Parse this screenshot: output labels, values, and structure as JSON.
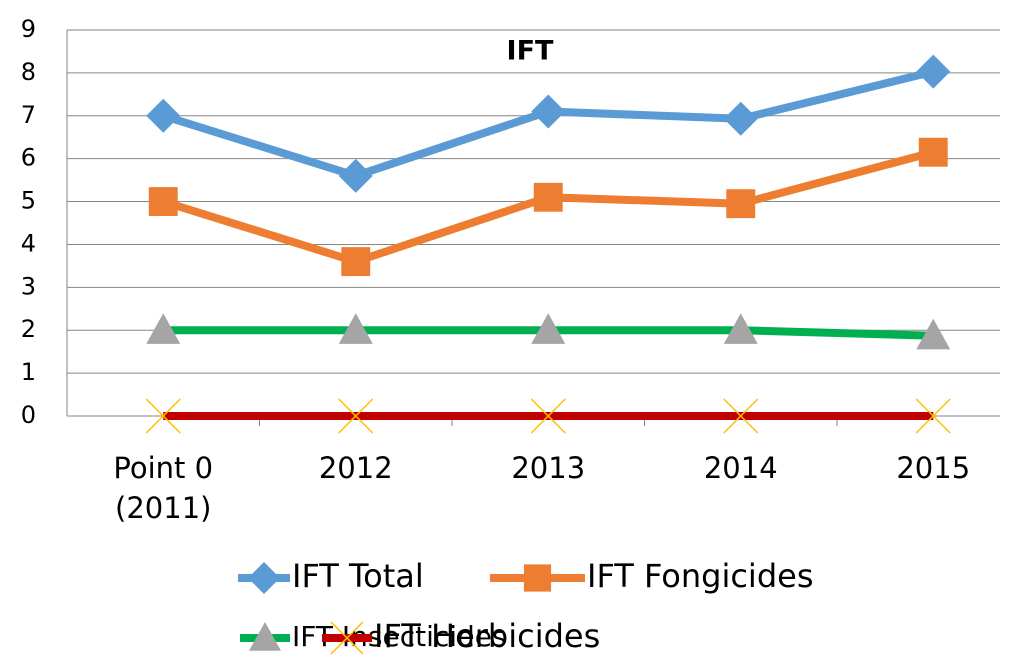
{
  "chart_data": {
    "type": "line",
    "title": "IFT",
    "categories": [
      "Point 0 (2011)",
      "2012",
      "2013",
      "2014",
      "2015"
    ],
    "series": [
      {
        "name": "IFT Total",
        "color": "#5b9bd5",
        "marker": "diamond",
        "values": [
          7,
          5.6,
          7.1,
          6.93,
          8.03
        ]
      },
      {
        "name": "IFT Fongicides",
        "color": "#ed7d31",
        "marker": "square",
        "values": [
          5,
          3.6,
          5.1,
          4.95,
          6.15
        ]
      },
      {
        "name": "IFT Insecticides",
        "color": "#00b050",
        "marker": "triangle",
        "values": [
          2,
          2,
          2,
          2,
          1.87
        ]
      },
      {
        "name": "IFT Herbicides",
        "color": "#c00000",
        "marker": "x",
        "values": [
          0,
          0,
          0,
          0,
          0
        ]
      }
    ],
    "ylim": [
      0,
      9
    ],
    "yticks": [
      0,
      1,
      2,
      3,
      4,
      5,
      6,
      7,
      8,
      9
    ],
    "grid": true
  }
}
